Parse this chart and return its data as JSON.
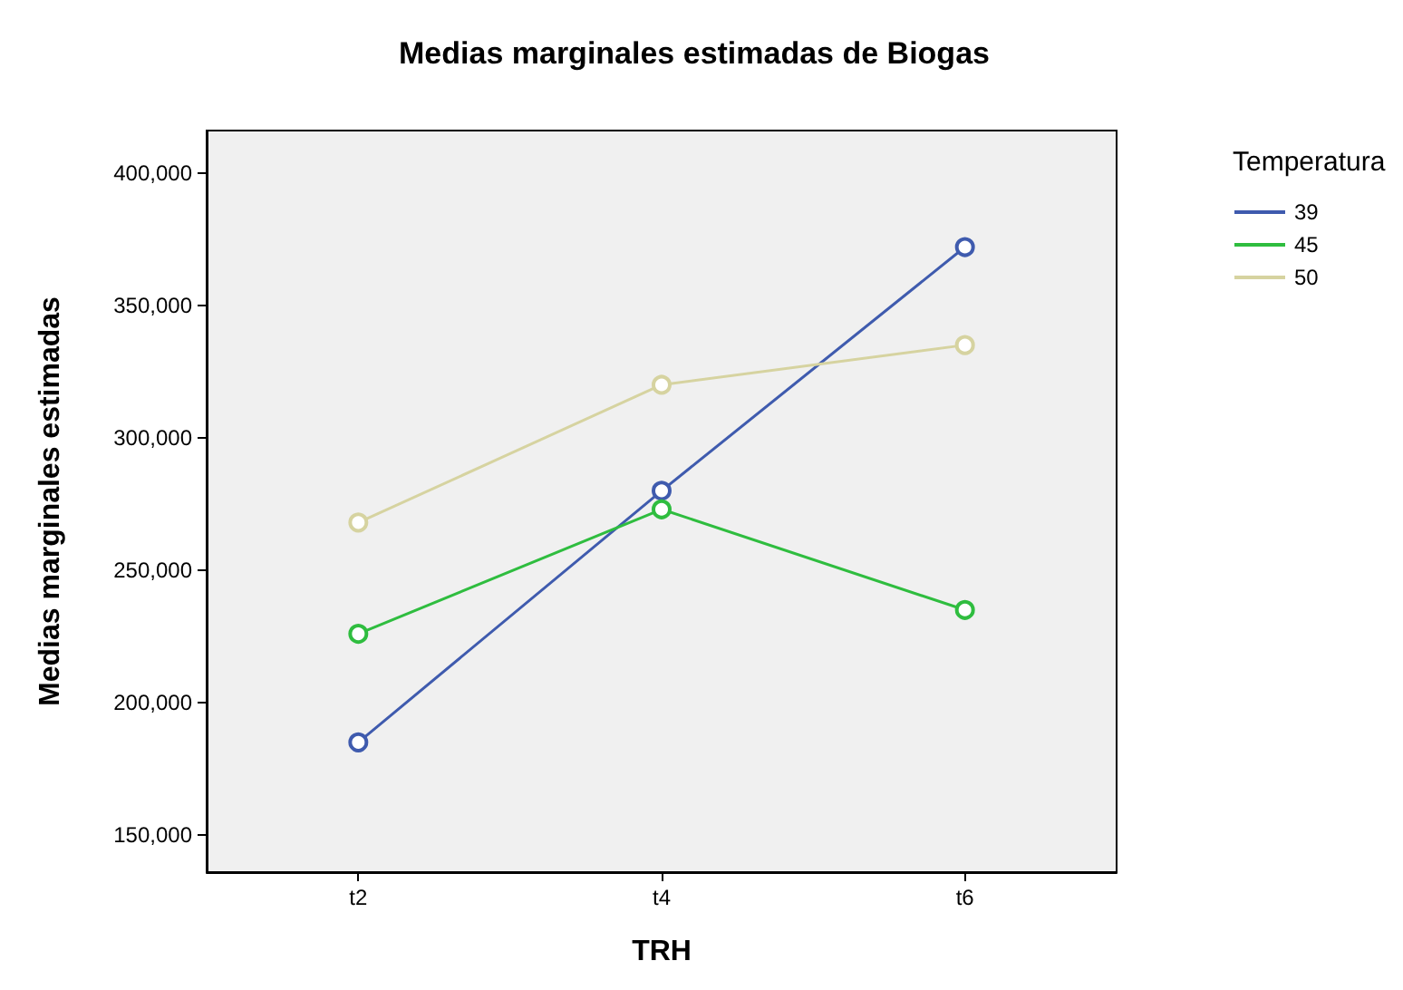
{
  "chart_data": {
    "type": "line",
    "title": "Medias marginales estimadas de Biogas",
    "xlabel": "TRH",
    "ylabel": "Medias marginales estimadas",
    "legend_title": "Temperatura",
    "categories": [
      "t2",
      "t4",
      "t6"
    ],
    "series": [
      {
        "name": "39",
        "color": "#3f5bae",
        "values": [
          185000,
          280000,
          372000
        ]
      },
      {
        "name": "45",
        "color": "#2fbd3f",
        "values": [
          226000,
          273000,
          235000
        ]
      },
      {
        "name": "50",
        "color": "#d6d3a0",
        "values": [
          268000,
          320000,
          335000
        ]
      }
    ],
    "ylim": [
      136000,
      416000
    ],
    "yticks": [
      {
        "value": 150000,
        "label": "150,000"
      },
      {
        "value": 200000,
        "label": "200,000"
      },
      {
        "value": 250000,
        "label": "250,000"
      },
      {
        "value": 300000,
        "label": "300,000"
      },
      {
        "value": 350000,
        "label": "350,000"
      },
      {
        "value": 400000,
        "label": "400,000"
      }
    ],
    "grid": false,
    "legend": "top right",
    "marker": "circle",
    "line_style": "solid"
  }
}
